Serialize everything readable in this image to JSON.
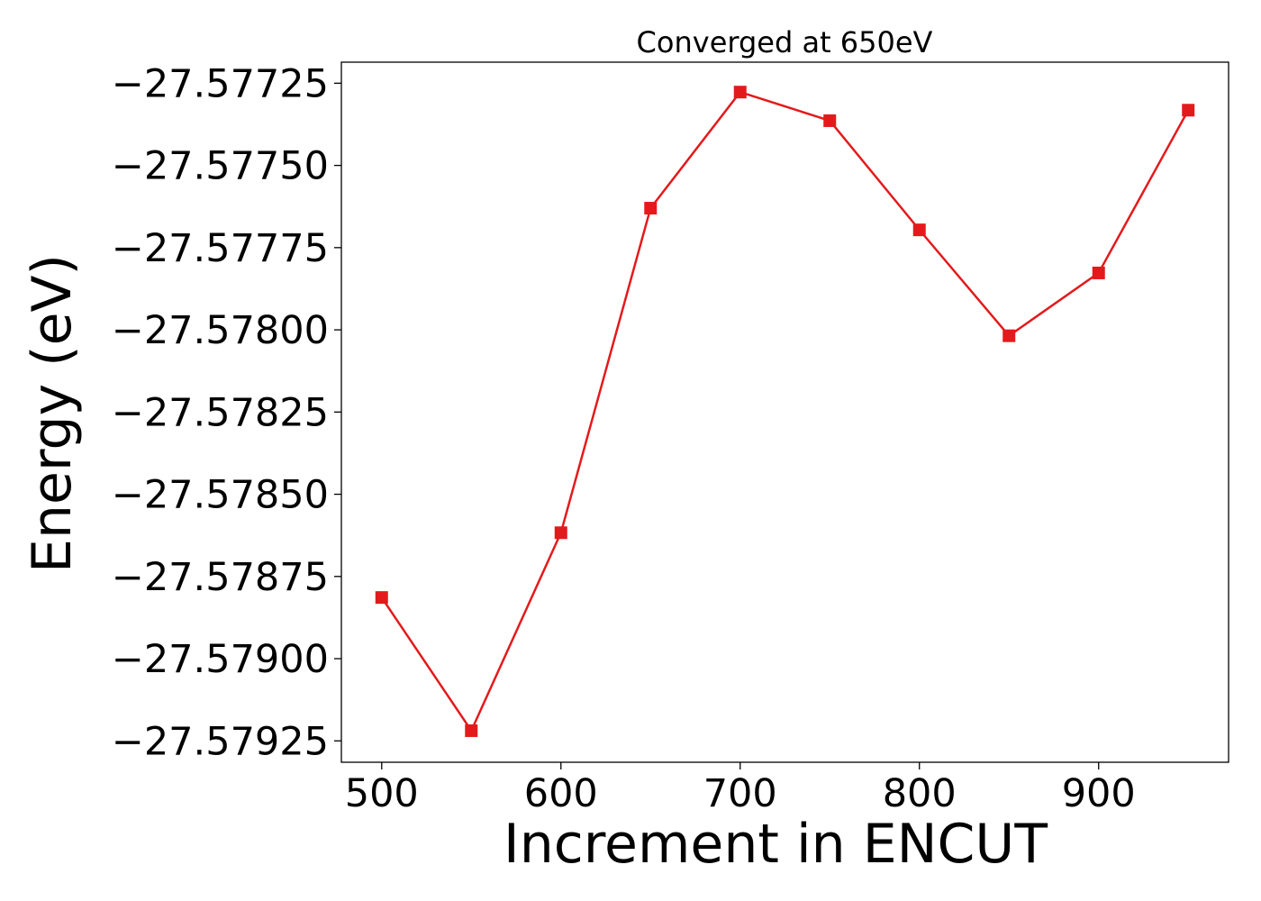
{
  "chart_data": {
    "type": "line",
    "title": "Converged at 650eV",
    "xlabel": "Increment in ENCUT",
    "ylabel": "Energy (eV)",
    "x": [
      500,
      550,
      600,
      650,
      700,
      750,
      800,
      850,
      900,
      950
    ],
    "series": [
      {
        "values": [
          -27.578814,
          -27.579219,
          -27.578617,
          -27.57763,
          -27.577277,
          -27.577364,
          -27.577696,
          -27.578018,
          -27.577827,
          -27.577332
        ],
        "color": "#e31a1c",
        "marker": "square"
      }
    ],
    "xlim": [
      477.5,
      972.5
    ],
    "ylim": [
      -27.579315,
      -27.577186
    ],
    "xticks": [
      500,
      600,
      700,
      800,
      900
    ],
    "xtick_labels": [
      "500",
      "600",
      "700",
      "800",
      "900"
    ],
    "yticks": [
      -27.57725,
      -27.5775,
      -27.57775,
      -27.578,
      -27.57825,
      -27.5785,
      -27.57875,
      -27.579,
      -27.57925
    ],
    "ytick_labels": [
      "−27.57725",
      "−27.57750",
      "−27.57775",
      "−27.57800",
      "−27.57825",
      "−27.57850",
      "−27.57875",
      "−27.57900",
      "−27.57925"
    ],
    "grid": false,
    "legend": false
  }
}
